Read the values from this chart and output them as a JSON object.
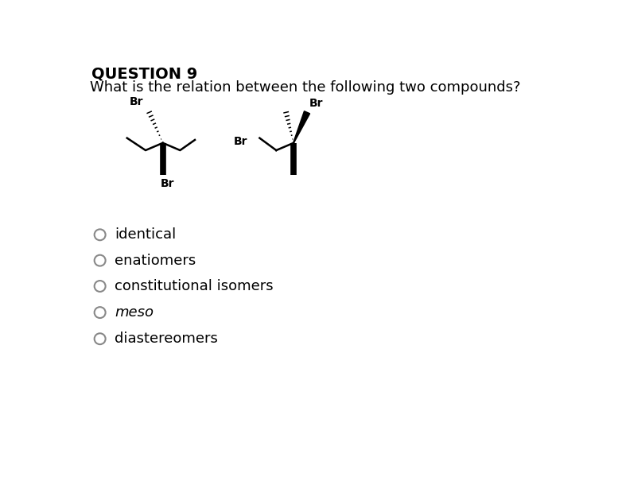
{
  "title": "QUESTION 9",
  "question": "What is the relation between the following two compounds?",
  "options": [
    {
      "text": "identical",
      "italic": false
    },
    {
      "text": "enatiomers",
      "italic": false
    },
    {
      "text": "constitutional isomers",
      "italic": false
    },
    {
      "text": "meso",
      "italic": true
    },
    {
      "text": "diastereomers",
      "italic": false
    }
  ],
  "background_color": "#ffffff",
  "text_color": "#000000",
  "circle_color": "#888888",
  "title_fontsize": 14,
  "question_fontsize": 13,
  "option_fontsize": 13
}
